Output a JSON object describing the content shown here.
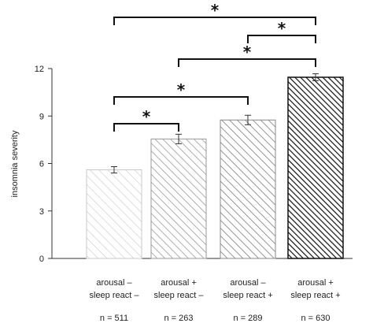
{
  "chart_data": {
    "type": "bar",
    "ylabel": "insomnia severity",
    "xlabel": "",
    "ylim": [
      0,
      12
    ],
    "yticks": [
      0,
      3,
      6,
      9,
      12
    ],
    "categories": [
      {
        "line1": "arousal –",
        "line2": "sleep react –",
        "n": "n = 511"
      },
      {
        "line1": "arousal +",
        "line2": "sleep react –",
        "n": "n = 263"
      },
      {
        "line1": "arousal –",
        "line2": "sleep react +",
        "n": "n = 289"
      },
      {
        "line1": "arousal +",
        "line2": "sleep react +",
        "n": "n = 630"
      }
    ],
    "values": [
      5.6,
      7.55,
      8.75,
      11.45
    ],
    "errors": [
      0.2,
      0.3,
      0.3,
      0.22
    ],
    "colors": [
      "#c8c8c8",
      "#9a9a9a",
      "#8a8a8a",
      "#111111"
    ],
    "grid": false,
    "significance": [
      {
        "from": 0,
        "to": 1,
        "label": "*"
      },
      {
        "from": 0,
        "to": 2,
        "label": "*"
      },
      {
        "from": 1,
        "to": 3,
        "label": "*"
      },
      {
        "from": 2,
        "to": 3,
        "label": "*"
      },
      {
        "from": 0,
        "to": 3,
        "label": "*"
      }
    ]
  }
}
